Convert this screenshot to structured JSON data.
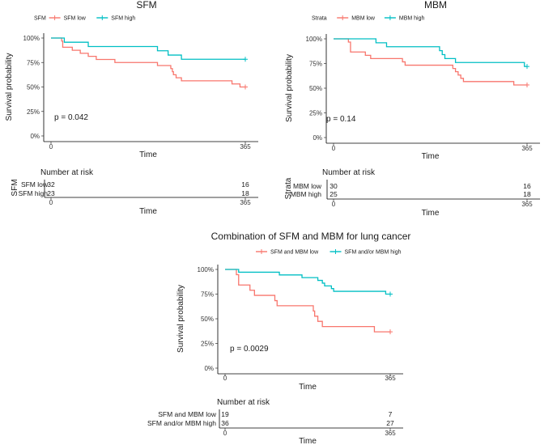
{
  "chart_data": [
    {
      "type": "line",
      "id": "sfm",
      "title": "SFM",
      "legend_title": "SFM",
      "legend_position": "top",
      "xlabel": "Time",
      "ylabel": "Survival probability",
      "xlim": [
        0,
        365
      ],
      "ylim": [
        0,
        1
      ],
      "x_ticks": [
        "0",
        "365"
      ],
      "y_ticks": [
        "0%",
        "25%",
        "50%",
        "75%",
        "100%"
      ],
      "pvalue": "p = 0.042",
      "series": [
        {
          "name": "SFM low",
          "color": "#F8766D",
          "censor_x": 365,
          "steps": [
            [
              0,
              1
            ],
            [
              20,
              0.969
            ],
            [
              22,
              0.906
            ],
            [
              40,
              0.875
            ],
            [
              55,
              0.844
            ],
            [
              70,
              0.813
            ],
            [
              85,
              0.781
            ],
            [
              120,
              0.75
            ],
            [
              200,
              0.719
            ],
            [
              225,
              0.688
            ],
            [
              228,
              0.656
            ],
            [
              230,
              0.625
            ],
            [
              235,
              0.594
            ],
            [
              245,
              0.563
            ],
            [
              340,
              0.531
            ],
            [
              355,
              0.5
            ]
          ]
        },
        {
          "name": "SFM high",
          "color": "#00BFC4",
          "censor_x": 365,
          "steps": [
            [
              0,
              1
            ],
            [
              25,
              0.957
            ],
            [
              70,
              0.913
            ],
            [
              200,
              0.87
            ],
            [
              220,
              0.826
            ],
            [
              245,
              0.783
            ]
          ]
        }
      ],
      "risk_table": {
        "title": "Number at risk",
        "strata_label": "SFM",
        "xlabel": "Time",
        "x_ticks": [
          "0",
          "365"
        ],
        "rows": [
          {
            "name": "SFM low",
            "color": "#F8766D",
            "values": [
              "32",
              "16"
            ]
          },
          {
            "name": "SFM high",
            "color": "#00BFC4",
            "values": [
              "23",
              "18"
            ]
          }
        ]
      }
    },
    {
      "type": "line",
      "id": "mbm",
      "title": "MBM",
      "legend_title": "Strata",
      "legend_position": "top",
      "xlabel": "Time",
      "ylabel": "Survival probability",
      "xlim": [
        0,
        365
      ],
      "ylim": [
        0,
        1
      ],
      "x_ticks": [
        "0",
        "365"
      ],
      "y_ticks": [
        "0%",
        "25%",
        "50%",
        "75%",
        "100%"
      ],
      "pvalue": "p = 0.14",
      "series": [
        {
          "name": "MBM low",
          "color": "#F8766D",
          "censor_x": 365,
          "steps": [
            [
              0,
              1
            ],
            [
              28,
              0.967
            ],
            [
              32,
              0.867
            ],
            [
              60,
              0.833
            ],
            [
              70,
              0.8
            ],
            [
              130,
              0.767
            ],
            [
              135,
              0.733
            ],
            [
              225,
              0.7
            ],
            [
              230,
              0.667
            ],
            [
              235,
              0.633
            ],
            [
              240,
              0.6
            ],
            [
              245,
              0.567
            ],
            [
              340,
              0.533
            ]
          ]
        },
        {
          "name": "MBM high",
          "color": "#00BFC4",
          "censor_x": 365,
          "steps": [
            [
              0,
              1
            ],
            [
              80,
              0.96
            ],
            [
              100,
              0.92
            ],
            [
              200,
              0.88
            ],
            [
              205,
              0.84
            ],
            [
              210,
              0.8
            ],
            [
              230,
              0.76
            ],
            [
              360,
              0.72
            ]
          ]
        }
      ],
      "risk_table": {
        "title": "Number at risk",
        "strata_label": "Strata",
        "xlabel": "Time",
        "x_ticks": [
          "0",
          "365"
        ],
        "rows": [
          {
            "name": "MBM low",
            "color": "#F8766D",
            "values": [
              "30",
              "16"
            ]
          },
          {
            "name": "MBM high",
            "color": "#00BFC4",
            "values": [
              "25",
              "18"
            ]
          }
        ]
      }
    },
    {
      "type": "line",
      "id": "combo",
      "title": "Combination of SFM and MBM for lung cancer",
      "legend_title": "",
      "legend_position": "top",
      "xlabel": "Time",
      "ylabel": "Survival probability",
      "xlim": [
        0,
        365
      ],
      "ylim": [
        0,
        1
      ],
      "x_ticks": [
        "0",
        "365"
      ],
      "y_ticks": [
        "0%",
        "25%",
        "50%",
        "75%",
        "100%"
      ],
      "pvalue": "p = 0.0029",
      "series": [
        {
          "name": "SFM and MBM low",
          "color": "#F8766D",
          "censor_x": 365,
          "steps": [
            [
              0,
              1
            ],
            [
              25,
              0.947
            ],
            [
              30,
              0.842
            ],
            [
              55,
              0.789
            ],
            [
              65,
              0.737
            ],
            [
              110,
              0.684
            ],
            [
              115,
              0.632
            ],
            [
              195,
              0.579
            ],
            [
              198,
              0.526
            ],
            [
              205,
              0.474
            ],
            [
              215,
              0.421
            ],
            [
              330,
              0.368
            ]
          ]
        },
        {
          "name": "SFM and/or MBM high",
          "color": "#00BFC4",
          "censor_x": 365,
          "steps": [
            [
              0,
              1
            ],
            [
              30,
              0.972
            ],
            [
              120,
              0.944
            ],
            [
              170,
              0.917
            ],
            [
              205,
              0.889
            ],
            [
              215,
              0.861
            ],
            [
              220,
              0.833
            ],
            [
              235,
              0.806
            ],
            [
              240,
              0.778
            ],
            [
              355,
              0.75
            ]
          ]
        }
      ],
      "risk_table": {
        "title": "Number at risk",
        "strata_label": "",
        "xlabel": "Time",
        "x_ticks": [
          "0",
          "365"
        ],
        "rows": [
          {
            "name": "SFM and MBM low",
            "color": "#F8766D",
            "values": [
              "19",
              "7"
            ]
          },
          {
            "name": "SFM and/or MBM high",
            "color": "#00BFC4",
            "values": [
              "36",
              "27"
            ]
          }
        ]
      }
    }
  ]
}
